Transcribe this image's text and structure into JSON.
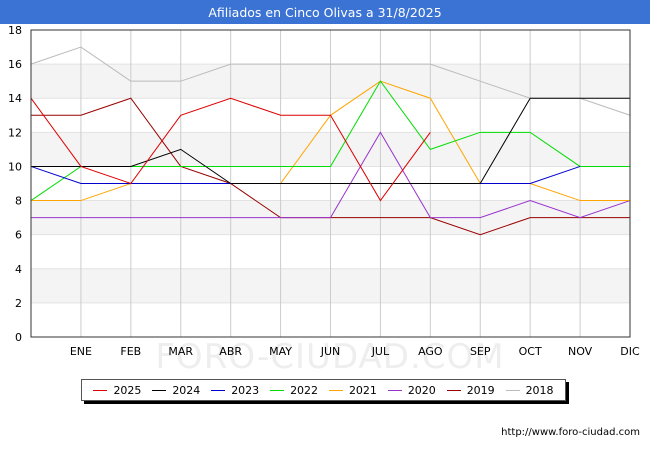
{
  "title": "Afiliados en Cinco Olivas a 31/8/2025",
  "watermark": "FORO-CIUDAD.COM",
  "source": "http://www.foro-ciudad.com",
  "chart_data": {
    "type": "line",
    "title": "Afiliados en Cinco Olivas a 31/8/2025",
    "xlabel": "",
    "ylabel": "",
    "categories": [
      "",
      "ENE",
      "FEB",
      "MAR",
      "ABR",
      "MAY",
      "JUN",
      "JUL",
      "AGO",
      "SEP",
      "OCT",
      "NOV",
      "DIC"
    ],
    "ylim": [
      0,
      18
    ],
    "yticks": [
      "0",
      "2",
      "4",
      "6",
      "8",
      "10",
      "12",
      "14",
      "16",
      "18"
    ],
    "grid": true,
    "legend_position": "bottom",
    "series": [
      {
        "name": "2025",
        "color": "#dd0000",
        "values": [
          14,
          10,
          9,
          13,
          14,
          13,
          13,
          8,
          12,
          null,
          null,
          null,
          null
        ]
      },
      {
        "name": "2024",
        "color": "#000000",
        "values": [
          10,
          10,
          10,
          11,
          9,
          9,
          9,
          9,
          9,
          9,
          14,
          14,
          14
        ]
      },
      {
        "name": "2023",
        "color": "#0000cc",
        "values": [
          10,
          9,
          9,
          9,
          9,
          9,
          9,
          9,
          9,
          9,
          9,
          10,
          null
        ]
      },
      {
        "name": "2022",
        "color": "#00dd00",
        "values": [
          8,
          10,
          10,
          10,
          10,
          10,
          10,
          15,
          11,
          12,
          12,
          10,
          10
        ]
      },
      {
        "name": "2021",
        "color": "#ffa500",
        "values": [
          8,
          8,
          9,
          9,
          9,
          9,
          13,
          15,
          14,
          9,
          9,
          8,
          8
        ]
      },
      {
        "name": "2020",
        "color": "#9933cc",
        "values": [
          7,
          7,
          7,
          7,
          7,
          7,
          7,
          12,
          7,
          7,
          8,
          7,
          8
        ]
      },
      {
        "name": "2019",
        "color": "#990000",
        "values": [
          13,
          13,
          14,
          10,
          9,
          7,
          7,
          7,
          7,
          6,
          7,
          7,
          7
        ]
      },
      {
        "name": "2018",
        "color": "#bbbbbb",
        "values": [
          16,
          17,
          15,
          15,
          16,
          16,
          16,
          16,
          16,
          15,
          14,
          14,
          13
        ]
      }
    ]
  }
}
